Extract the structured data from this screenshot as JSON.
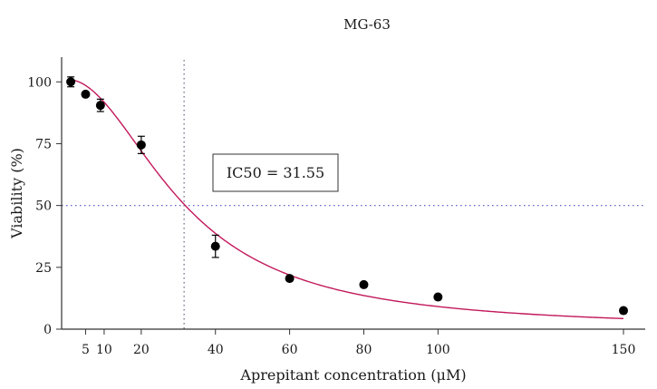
{
  "chart_data": {
    "type": "scatter",
    "title": "MG-63",
    "xlabel": "Aprepitant concentration (μM)",
    "ylabel": "Viability (%)",
    "x_ticks": [
      5,
      10,
      20,
      40,
      60,
      80,
      100,
      150
    ],
    "y_ticks": [
      0,
      25,
      50,
      75,
      100
    ],
    "xlim": [
      0,
      160
    ],
    "ylim": [
      0,
      110
    ],
    "points": [
      {
        "x": 1,
        "y": 100,
        "err": 2
      },
      {
        "x": 5,
        "y": 95,
        "err": 0
      },
      {
        "x": 9,
        "y": 90.5,
        "err": 2.5
      },
      {
        "x": 20,
        "y": 74.5,
        "err": 3.5
      },
      {
        "x": 40,
        "y": 33.5,
        "err": 4.5
      },
      {
        "x": 60,
        "y": 20.5,
        "err": 0
      },
      {
        "x": 80,
        "y": 18,
        "err": 0
      },
      {
        "x": 100,
        "y": 13,
        "err": 0
      },
      {
        "x": 150,
        "y": 7.5,
        "err": 0
      }
    ],
    "fit_curve": {
      "type": "hill",
      "ic50": 31.55,
      "hill": 2.0,
      "top": 101,
      "bottom": 0
    },
    "reference_lines": {
      "x": 31.55,
      "y": 50
    },
    "annotation": "IC50 = 31.55",
    "grid": false,
    "colors": {
      "points": "#000000",
      "curve": "#c2185b",
      "ref_x": "#6f6f8a",
      "ref_y": "#5b62c8"
    }
  }
}
